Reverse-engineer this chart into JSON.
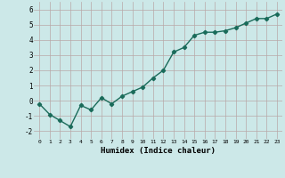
{
  "x": [
    0,
    1,
    2,
    3,
    4,
    5,
    6,
    7,
    8,
    9,
    10,
    11,
    12,
    13,
    14,
    15,
    16,
    17,
    18,
    19,
    20,
    21,
    22,
    23
  ],
  "y": [
    -0.2,
    -0.9,
    -1.3,
    -1.7,
    -0.3,
    -0.6,
    0.2,
    -0.2,
    0.3,
    0.6,
    0.9,
    1.5,
    2.0,
    3.2,
    3.5,
    4.3,
    4.5,
    4.5,
    4.6,
    4.8,
    5.1,
    5.4,
    5.4,
    5.7
  ],
  "xlabel": "Humidex (Indice chaleur)",
  "xlim": [
    -0.5,
    23.5
  ],
  "ylim": [
    -2.5,
    6.5
  ],
  "yticks": [
    -2,
    -1,
    0,
    1,
    2,
    3,
    4,
    5,
    6
  ],
  "xticks": [
    0,
    1,
    2,
    3,
    4,
    5,
    6,
    7,
    8,
    9,
    10,
    11,
    12,
    13,
    14,
    15,
    16,
    17,
    18,
    19,
    20,
    21,
    22,
    23
  ],
  "line_color": "#1a6b5a",
  "marker": "D",
  "marker_size": 2.2,
  "bg_color": "#cce8e8",
  "grid_color": "#b8a8a8",
  "line_width": 1.0
}
